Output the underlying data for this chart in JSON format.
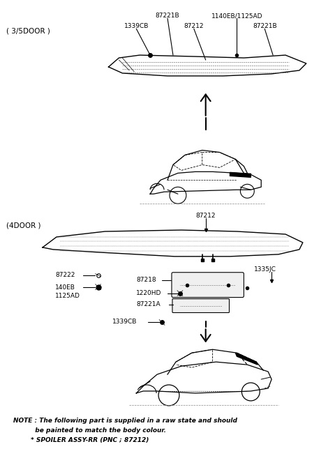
{
  "bg_color": "#ffffff",
  "fig_width": 4.8,
  "fig_height": 6.57,
  "dpi": 100,
  "section1_label": "( 3/5DOOR )",
  "section2_label": "(4DOOR )",
  "note_line1": "NOTE : The following part is supplied in a raw state and should",
  "note_line2": "          be painted to match the body colour.",
  "note_line3": "        * SPOILER ASSY-RR (PNC ; 87212)",
  "text_color": "#000000"
}
